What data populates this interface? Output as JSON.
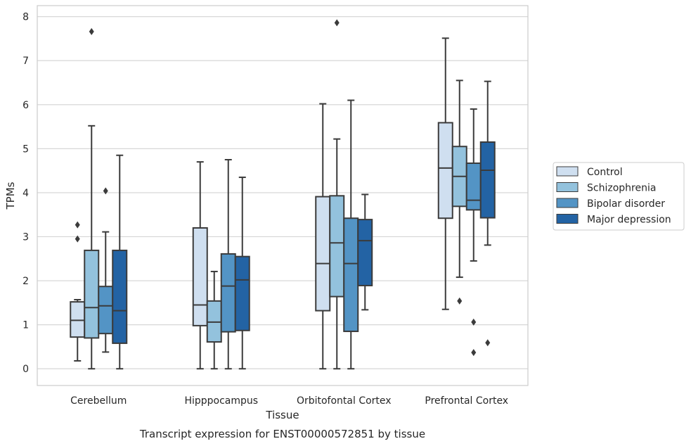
{
  "chart_data": {
    "type": "box",
    "xlabel": "Tissue",
    "ylabel": "TPMs",
    "caption": "Transcript expression for ENST00000572851 by tissue",
    "ylim": [
      -0.38,
      8.25
    ],
    "yticks": [
      0,
      1,
      2,
      3,
      4,
      5,
      6,
      7,
      8
    ],
    "grid": "horizontal",
    "legend_position": "right",
    "categories": [
      "Cerebellum",
      "Hipppocampus",
      "Orbitofontal Cortex",
      "Prefrontal Cortex"
    ],
    "series": [
      {
        "name": "Control",
        "color": "#cfdff0",
        "boxes": [
          {
            "whislo": 0.18,
            "q1": 0.72,
            "med": 1.1,
            "q3": 1.52,
            "whishi": 1.57,
            "fliers": [
              2.95,
              3.27
            ]
          },
          {
            "whislo": 0.0,
            "q1": 0.98,
            "med": 1.45,
            "q3": 3.2,
            "whishi": 4.7,
            "fliers": []
          },
          {
            "whislo": 0.0,
            "q1": 1.32,
            "med": 2.39,
            "q3": 3.91,
            "whishi": 6.02,
            "fliers": []
          },
          {
            "whislo": 1.35,
            "q1": 3.42,
            "med": 4.56,
            "q3": 5.59,
            "whishi": 7.51,
            "fliers": []
          }
        ]
      },
      {
        "name": "Schizophrenia",
        "color": "#93c2dd",
        "boxes": [
          {
            "whislo": 0.0,
            "q1": 0.7,
            "med": 1.39,
            "q3": 2.69,
            "whishi": 5.52,
            "fliers": [
              7.66
            ]
          },
          {
            "whislo": 0.0,
            "q1": 0.61,
            "med": 1.06,
            "q3": 1.54,
            "whishi": 2.21,
            "fliers": []
          },
          {
            "whislo": 0.0,
            "q1": 1.64,
            "med": 2.86,
            "q3": 3.93,
            "whishi": 5.22,
            "fliers": [
              7.86
            ]
          },
          {
            "whislo": 2.08,
            "q1": 3.69,
            "med": 4.37,
            "q3": 5.05,
            "whishi": 6.55,
            "fliers": [
              1.54
            ]
          }
        ]
      },
      {
        "name": "Bipolar disorder",
        "color": "#5394c5",
        "boxes": [
          {
            "whislo": 0.38,
            "q1": 0.8,
            "med": 1.43,
            "q3": 1.87,
            "whishi": 3.11,
            "fliers": [
              4.04
            ]
          },
          {
            "whislo": 0.0,
            "q1": 0.84,
            "med": 1.88,
            "q3": 2.61,
            "whishi": 4.75,
            "fliers": []
          },
          {
            "whislo": 0.0,
            "q1": 0.85,
            "med": 2.39,
            "q3": 3.42,
            "whishi": 6.1,
            "fliers": []
          },
          {
            "whislo": 2.45,
            "q1": 3.61,
            "med": 3.83,
            "q3": 4.67,
            "whishi": 5.9,
            "fliers": [
              1.06,
              0.37
            ]
          }
        ]
      },
      {
        "name": "Major depression",
        "color": "#2363a4",
        "boxes": [
          {
            "whislo": 0.0,
            "q1": 0.58,
            "med": 1.32,
            "q3": 2.69,
            "whishi": 4.85,
            "fliers": []
          },
          {
            "whislo": 0.0,
            "q1": 0.87,
            "med": 2.02,
            "q3": 2.55,
            "whishi": 4.35,
            "fliers": []
          },
          {
            "whislo": 1.34,
            "q1": 1.89,
            "med": 2.91,
            "q3": 3.39,
            "whishi": 3.96,
            "fliers": []
          },
          {
            "whislo": 2.81,
            "q1": 3.43,
            "med": 4.51,
            "q3": 5.15,
            "whishi": 6.53,
            "fliers": [
              0.59
            ]
          }
        ]
      }
    ]
  }
}
